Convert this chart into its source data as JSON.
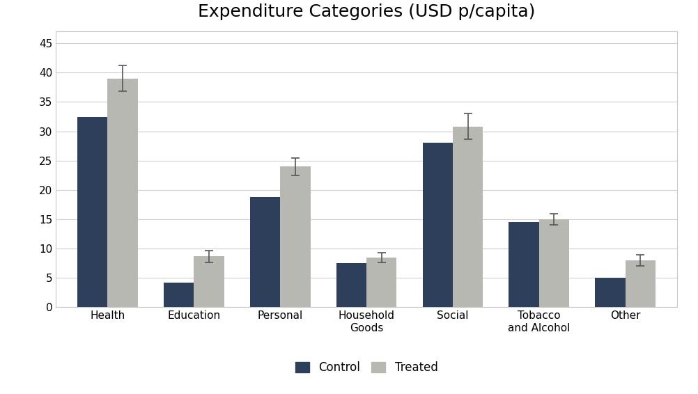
{
  "title": "Expenditure Categories (USD p/capita)",
  "categories": [
    "Health",
    "Education",
    "Personal",
    "Household\nGoods",
    "Social",
    "Tobacco\nand Alcohol",
    "Other"
  ],
  "control_values": [
    32.5,
    4.2,
    18.8,
    7.5,
    28.0,
    14.5,
    5.0
  ],
  "treated_values": [
    39.0,
    8.7,
    24.0,
    8.5,
    30.8,
    15.0,
    8.0
  ],
  "treated_errors": [
    2.2,
    1.0,
    1.5,
    0.8,
    2.2,
    1.0,
    1.0
  ],
  "control_color": "#2E3F5C",
  "treated_color": "#B8B8B2",
  "bar_width": 0.35,
  "ylim": [
    0,
    47
  ],
  "yticks": [
    0,
    5,
    10,
    15,
    20,
    25,
    30,
    35,
    40,
    45
  ],
  "legend_labels": [
    "Control",
    "Treated"
  ],
  "background_color": "#FFFFFF",
  "plot_bg_color": "#FFFFFF",
  "grid_color": "#D0D0D0",
  "border_color": "#C8C8C8",
  "title_fontsize": 18,
  "tick_fontsize": 11,
  "legend_fontsize": 12
}
